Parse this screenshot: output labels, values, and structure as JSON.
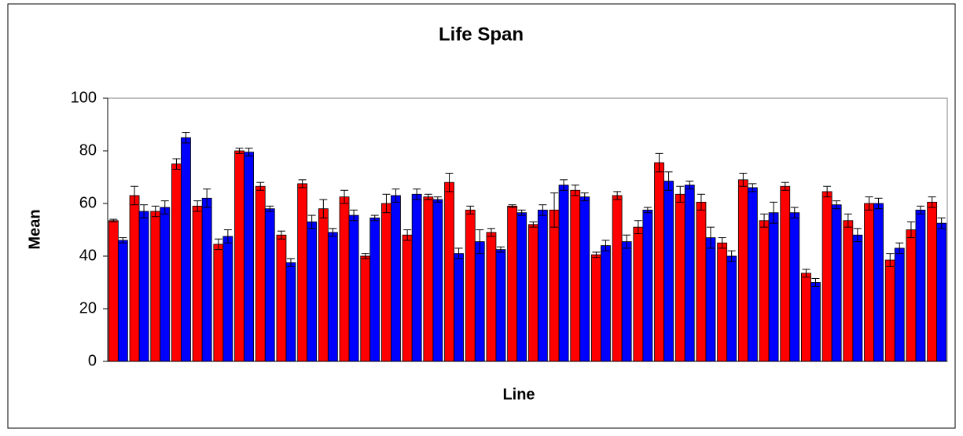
{
  "chart_data": {
    "type": "bar",
    "title": "Life Span",
    "x_label": "Line",
    "y_label": "Mean",
    "categories": [
      null,
      null,
      null,
      null,
      null,
      null,
      null,
      null,
      null,
      null,
      null,
      null,
      null,
      null,
      null,
      null,
      null,
      null,
      null,
      null,
      null,
      null,
      null,
      null,
      null,
      null,
      null,
      null,
      null,
      null,
      null,
      null,
      null,
      null,
      null,
      null,
      null,
      null,
      null,
      null
    ],
    "series": [
      {
        "color": "#ff0000",
        "values": [
          53.5,
          63,
          57,
          75,
          59,
          44.5,
          80,
          66.5,
          48,
          67.5,
          58,
          62.5,
          40,
          60,
          48,
          62.5,
          68,
          57.5,
          49,
          59,
          52,
          57.5,
          65,
          40.5,
          63,
          51,
          75.5,
          63.5,
          60.5,
          45,
          69,
          53.5,
          66.5,
          33.5,
          64.5,
          53.5,
          60,
          38.5,
          50,
          60.5
        ],
        "errors": [
          0.5,
          3.5,
          2,
          2,
          2,
          2,
          1,
          1.5,
          1.5,
          1.5,
          3.5,
          2.5,
          1,
          3.5,
          2,
          1,
          3.5,
          1.5,
          1.5,
          0.5,
          1,
          6.5,
          2,
          1,
          1.5,
          2.5,
          3.5,
          3,
          3,
          2,
          2.5,
          2.5,
          1.5,
          1.5,
          2,
          2.5,
          2.5,
          2.5,
          3,
          2
        ]
      },
      {
        "color": "#0000ff",
        "values": [
          46,
          57,
          58.5,
          85,
          62,
          47.5,
          79.5,
          58,
          37.5,
          53,
          49,
          55.5,
          54.5,
          63,
          63.5,
          61.5,
          41,
          45.5,
          42.5,
          56.5,
          57.5,
          67,
          62.5,
          44,
          45.5,
          57.5,
          68.5,
          67,
          47,
          40,
          66,
          56.5,
          56.5,
          30,
          59.5,
          48,
          60,
          43,
          57.5,
          52.5
        ],
        "errors": [
          1,
          2.5,
          2.5,
          2,
          3.5,
          2.5,
          1.5,
          1,
          1.5,
          2.5,
          1.5,
          2,
          1,
          2.5,
          2,
          1,
          2,
          4.5,
          1,
          1,
          2,
          2,
          1.5,
          2,
          2.5,
          1,
          3.5,
          1.5,
          4,
          2,
          1.5,
          4,
          2,
          1.5,
          1.5,
          2.5,
          2,
          2,
          1.5,
          2
        ]
      }
    ],
    "ylim": [
      0,
      100
    ],
    "yticks": [
      0,
      20,
      40,
      60,
      80,
      100
    ]
  }
}
